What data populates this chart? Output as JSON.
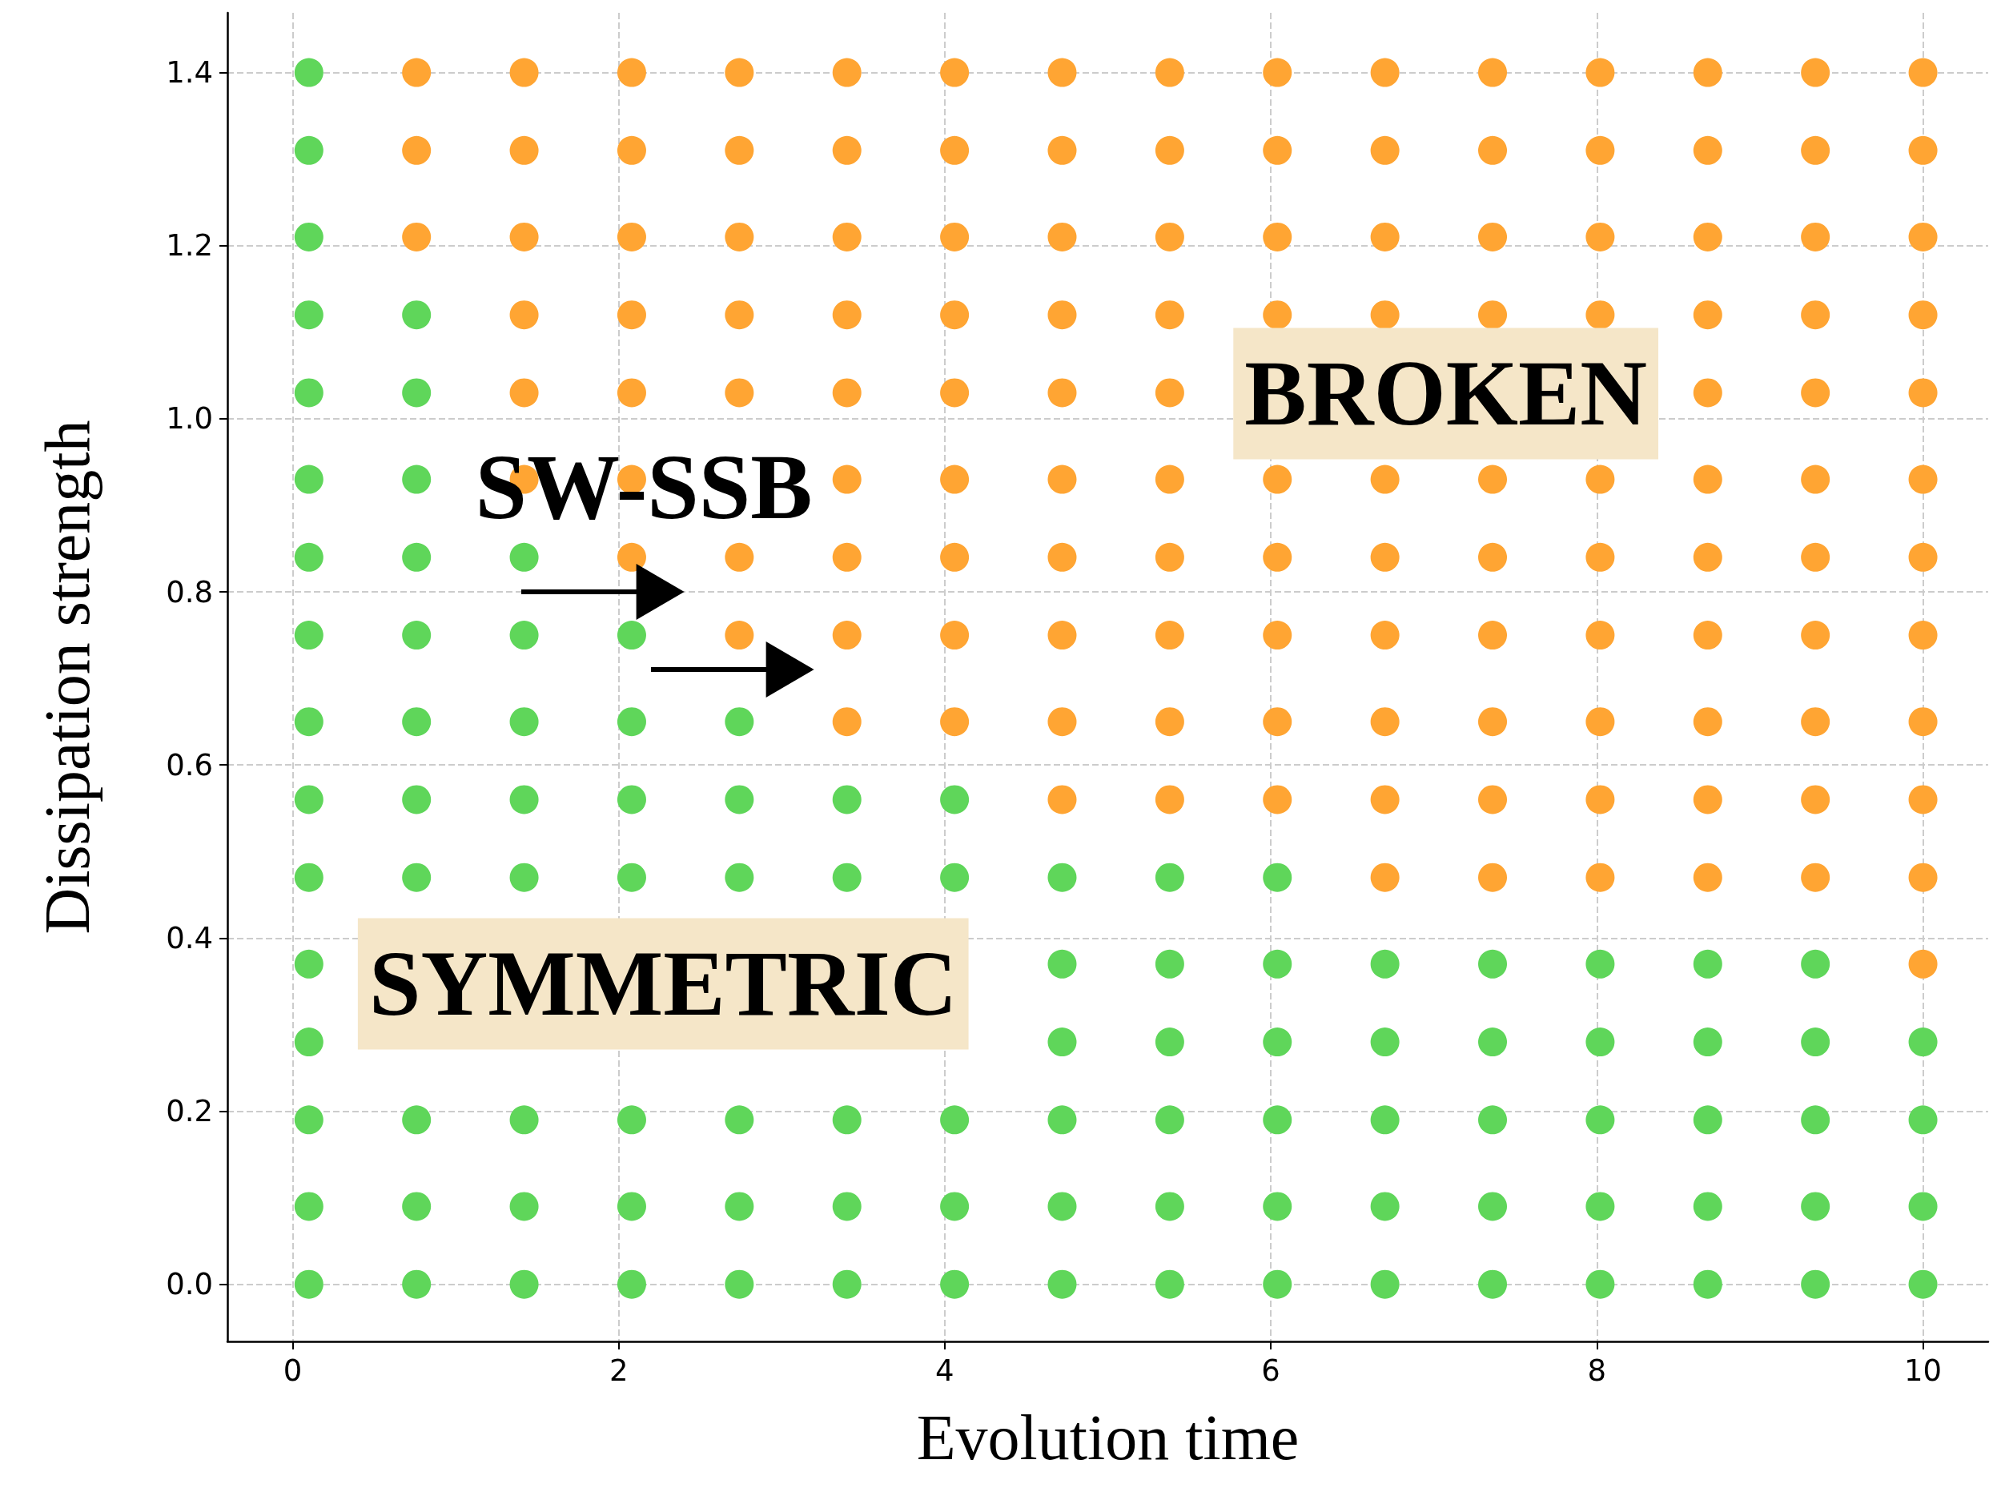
{
  "chart_data": {
    "type": "scatter",
    "xlabel": "Evolution time",
    "ylabel": "Dissipation strength",
    "xlim": [
      -0.4,
      10.4
    ],
    "ylim": [
      -0.066,
      1.469
    ],
    "xticks": [
      0,
      2,
      4,
      6,
      8,
      10
    ],
    "yticks": [
      {
        "value": 0,
        "label": "0.0"
      },
      0.2,
      0.4,
      0.6,
      0.8,
      {
        "value": 1,
        "label": "1.0"
      },
      1.2,
      1.4
    ],
    "grid": true,
    "marker": "circle",
    "annotations": [
      "SW-SSB",
      "BROKEN",
      "SYMMETRIC"
    ],
    "series": [
      {
        "color": "#5fd65a",
        "x": [
          0.1,
          0.1,
          0.1,
          0.1,
          0.1,
          0.1,
          0.1,
          0.1,
          0.1,
          0.1,
          0.1,
          0.1,
          0.1,
          0.1,
          0.1,
          0.1,
          0.76,
          0.76,
          0.76,
          0.76,
          0.76,
          0.76,
          0.76,
          0.76,
          0.76,
          0.76,
          0.76,
          1.42,
          1.42,
          1.42,
          1.42,
          1.42,
          1.42,
          1.42,
          1.42,
          2.08,
          2.08,
          2.08,
          2.08,
          2.08,
          2.08,
          2.08,
          2.74,
          2.74,
          2.74,
          2.74,
          2.74,
          2.74,
          3.4,
          3.4,
          3.4,
          3.4,
          3.4,
          4.06,
          4.06,
          4.06,
          4.06,
          4.06,
          4.72,
          4.72,
          4.72,
          4.72,
          4.72,
          4.72,
          5.38,
          5.38,
          5.38,
          5.38,
          5.38,
          5.38,
          6.04,
          6.04,
          6.04,
          6.04,
          6.04,
          6.04,
          6.7,
          6.7,
          6.7,
          6.7,
          6.7,
          7.36,
          7.36,
          7.36,
          7.36,
          7.36,
          8.02,
          8.02,
          8.02,
          8.02,
          8.02,
          8.68,
          8.68,
          8.68,
          8.68,
          8.68,
          9.34,
          9.34,
          9.34,
          9.34,
          9.34,
          10,
          10,
          10,
          10
        ],
        "values": [
          0,
          0.09,
          0.19,
          0.28,
          0.37,
          0.47,
          0.56,
          0.65,
          0.75,
          0.84,
          0.93,
          1.03,
          1.12,
          1.21,
          1.31,
          1.4,
          0,
          0.09,
          0.19,
          0.47,
          0.56,
          0.65,
          0.75,
          0.84,
          0.93,
          1.03,
          1.12,
          0,
          0.09,
          0.19,
          0.47,
          0.56,
          0.65,
          0.75,
          0.84,
          0,
          0.09,
          0.19,
          0.47,
          0.56,
          0.65,
          0.75,
          0,
          0.09,
          0.19,
          0.47,
          0.56,
          0.65,
          0,
          0.09,
          0.19,
          0.47,
          0.56,
          0,
          0.09,
          0.19,
          0.47,
          0.56,
          0,
          0.09,
          0.19,
          0.28,
          0.37,
          0.47,
          0,
          0.09,
          0.19,
          0.28,
          0.37,
          0.47,
          0,
          0.09,
          0.19,
          0.28,
          0.37,
          0.47,
          0,
          0.09,
          0.19,
          0.28,
          0.37,
          0,
          0.09,
          0.19,
          0.28,
          0.37,
          0,
          0.09,
          0.19,
          0.28,
          0.37,
          0,
          0.09,
          0.19,
          0.28,
          0.37,
          0,
          0.09,
          0.19,
          0.28,
          0.37,
          0,
          0.09,
          0.19,
          0.28
        ]
      },
      {
        "color": "#ffa533",
        "x": [
          0.76,
          0.76,
          0.76,
          1.42,
          1.42,
          1.42,
          1.42,
          1.42,
          1.42,
          2.08,
          2.08,
          2.08,
          2.08,
          2.08,
          2.08,
          2.08,
          2.74,
          2.74,
          2.74,
          2.74,
          2.74,
          2.74,
          2.74,
          3.4,
          3.4,
          3.4,
          3.4,
          3.4,
          3.4,
          3.4,
          3.4,
          3.4,
          4.06,
          4.06,
          4.06,
          4.06,
          4.06,
          4.06,
          4.06,
          4.06,
          4.06,
          4.72,
          4.72,
          4.72,
          4.72,
          4.72,
          4.72,
          4.72,
          4.72,
          4.72,
          4.72,
          5.38,
          5.38,
          5.38,
          5.38,
          5.38,
          5.38,
          5.38,
          5.38,
          5.38,
          5.38,
          6.04,
          6.04,
          6.04,
          6.04,
          6.04,
          6.04,
          6.04,
          6.04,
          6.04,
          6.7,
          6.7,
          6.7,
          6.7,
          6.7,
          6.7,
          6.7,
          6.7,
          6.7,
          6.7,
          7.36,
          7.36,
          7.36,
          7.36,
          7.36,
          7.36,
          7.36,
          7.36,
          7.36,
          7.36,
          8.02,
          8.02,
          8.02,
          8.02,
          8.02,
          8.02,
          8.02,
          8.02,
          8.02,
          8.02,
          8.68,
          8.68,
          8.68,
          8.68,
          8.68,
          8.68,
          8.68,
          8.68,
          8.68,
          8.68,
          8.68,
          9.34,
          9.34,
          9.34,
          9.34,
          9.34,
          9.34,
          9.34,
          9.34,
          9.34,
          9.34,
          9.34,
          10,
          10,
          10,
          10,
          10,
          10,
          10,
          10,
          10,
          10,
          10,
          10
        ],
        "values": [
          1.21,
          1.31,
          1.4,
          0.93,
          1.03,
          1.12,
          1.21,
          1.31,
          1.4,
          0.84,
          0.93,
          1.03,
          1.12,
          1.21,
          1.31,
          1.4,
          0.75,
          0.84,
          1.03,
          1.12,
          1.21,
          1.31,
          1.4,
          0.65,
          0.75,
          0.84,
          0.93,
          1.03,
          1.12,
          1.21,
          1.31,
          1.4,
          0.65,
          0.75,
          0.84,
          0.93,
          1.03,
          1.12,
          1.21,
          1.31,
          1.4,
          0.56,
          0.65,
          0.75,
          0.84,
          0.93,
          1.03,
          1.12,
          1.21,
          1.31,
          1.4,
          0.56,
          0.65,
          0.75,
          0.84,
          0.93,
          1.03,
          1.12,
          1.21,
          1.31,
          1.4,
          0.56,
          0.65,
          0.75,
          0.84,
          0.93,
          1.12,
          1.21,
          1.31,
          1.4,
          0.47,
          0.56,
          0.65,
          0.75,
          0.84,
          0.93,
          1.12,
          1.21,
          1.31,
          1.4,
          0.47,
          0.56,
          0.65,
          0.75,
          0.84,
          0.93,
          1.12,
          1.21,
          1.31,
          1.4,
          0.47,
          0.56,
          0.65,
          0.75,
          0.84,
          0.93,
          1.12,
          1.21,
          1.31,
          1.4,
          0.47,
          0.56,
          0.65,
          0.75,
          0.84,
          0.93,
          1.03,
          1.12,
          1.21,
          1.31,
          1.4,
          0.47,
          0.56,
          0.65,
          0.75,
          0.84,
          0.93,
          1.03,
          1.12,
          1.21,
          1.31,
          1.4,
          0.37,
          0.47,
          0.56,
          0.65,
          0.75,
          0.84,
          0.93,
          1.03,
          1.12,
          1.21,
          1.31,
          1.4
        ]
      }
    ]
  }
}
